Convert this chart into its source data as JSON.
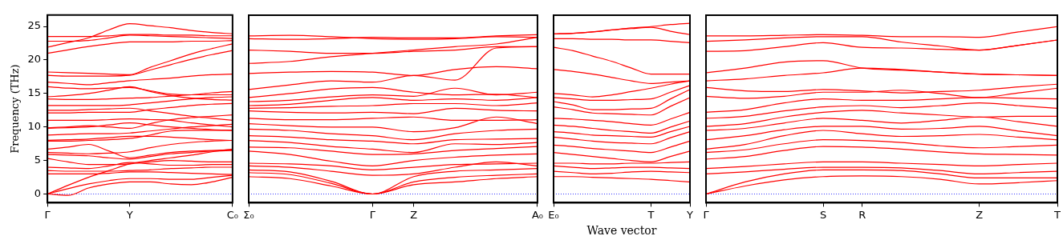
{
  "chart_data": [
    {
      "type": "line",
      "ylabel": "Frequency (THz)",
      "marker": "none",
      "line_style": "solid",
      "categories": [
        "Γ",
        null,
        null,
        null,
        "Y",
        null,
        null,
        null,
        null,
        "C₀"
      ],
      "ylim": [
        -1.3,
        26.7
      ],
      "yticks": [
        0,
        5,
        10,
        15,
        20,
        25
      ],
      "ref_lines": [
        {
          "axis": "y",
          "value": 0,
          "color": "#0000ff",
          "line_style": "dotted"
        }
      ],
      "series": [
        {
          "color": "#ff0000",
          "values": [
            0,
            -0.2,
            0.9,
            1.5,
            1.8,
            1.8,
            1.5,
            1.4,
            1.8,
            2.5
          ]
        },
        {
          "color": "#ff0000",
          "values": [
            0,
            0.8,
            1.5,
            2.0,
            2.3,
            2.3,
            2.2,
            2.2,
            2.5,
            2.8
          ]
        },
        {
          "color": "#ff0000",
          "values": [
            0,
            1.3,
            2.5,
            3.5,
            4.5,
            5.0,
            5.4,
            5.8,
            6.3,
            6.7
          ]
        },
        {
          "color": "#ff0000",
          "values": [
            3.0,
            3.0,
            3.0,
            3.1,
            3.3,
            3.3,
            3.2,
            3.1,
            3.0,
            2.9
          ]
        },
        {
          "color": "#ff0000",
          "values": [
            3.5,
            3.4,
            3.4,
            3.4,
            3.5,
            3.6,
            3.8,
            3.9,
            4.0,
            4.0
          ]
        },
        {
          "color": "#ff0000",
          "values": [
            4.0,
            3.9,
            3.8,
            4.2,
            4.7,
            4.5,
            4.3,
            4.3,
            4.4,
            4.4
          ]
        },
        {
          "color": "#ff0000",
          "values": [
            5.3,
            4.8,
            4.4,
            4.4,
            4.5,
            4.8,
            5.0,
            4.9,
            4.8,
            4.8
          ]
        },
        {
          "color": "#ff0000",
          "values": [
            5.9,
            5.8,
            5.7,
            5.4,
            5.2,
            5.6,
            6.0,
            6.2,
            6.4,
            6.5
          ]
        },
        {
          "color": "#ff0000",
          "values": [
            6.2,
            6.1,
            6.0,
            6.1,
            6.3,
            6.9,
            7.4,
            7.7,
            7.9,
            8.0
          ]
        },
        {
          "color": "#ff0000",
          "values": [
            6.7,
            7.0,
            7.4,
            6.4,
            5.4,
            5.8,
            6.2,
            6.4,
            6.5,
            6.6
          ]
        },
        {
          "color": "#ff0000",
          "values": [
            7.9,
            7.9,
            8.0,
            8.1,
            8.3,
            8.8,
            9.4,
            9.5,
            9.5,
            9.5
          ]
        },
        {
          "color": "#ff0000",
          "values": [
            8.0,
            8.1,
            8.2,
            8.4,
            8.6,
            8.6,
            8.5,
            8.3,
            8.1,
            8.0
          ]
        },
        {
          "color": "#ff0000",
          "values": [
            8.8,
            8.9,
            9.0,
            9.0,
            9.1,
            9.4,
            9.7,
            10.0,
            10.2,
            10.4
          ]
        },
        {
          "color": "#ff0000",
          "values": [
            9.8,
            9.9,
            10.0,
            10.3,
            10.6,
            10.3,
            10.0,
            9.8,
            9.6,
            9.5
          ]
        },
        {
          "color": "#ff0000",
          "values": [
            9.9,
            10.0,
            10.2,
            10.0,
            9.8,
            10.5,
            11.1,
            11.4,
            11.6,
            11.8
          ]
        },
        {
          "color": "#ff0000",
          "values": [
            11.0,
            11.0,
            11.0,
            11.1,
            11.2,
            11.1,
            11.0,
            10.6,
            10.3,
            10.0
          ]
        },
        {
          "color": "#ff0000",
          "values": [
            12.1,
            12.1,
            12.2,
            12.2,
            12.2,
            12.6,
            12.9,
            13.2,
            13.4,
            13.5
          ]
        },
        {
          "color": "#ff0000",
          "values": [
            12.5,
            12.5,
            12.6,
            12.7,
            12.8,
            12.4,
            12.0,
            11.6,
            11.3,
            11.0
          ]
        },
        {
          "color": "#ff0000",
          "values": [
            13.2,
            13.2,
            13.2,
            13.2,
            13.3,
            13.6,
            13.9,
            14.2,
            14.4,
            14.5
          ]
        },
        {
          "color": "#ff0000",
          "values": [
            14.2,
            14.1,
            14.1,
            14.2,
            14.3,
            14.4,
            14.6,
            14.8,
            15.1,
            15.3
          ]
        },
        {
          "color": "#ff0000",
          "values": [
            14.5,
            14.7,
            15.0,
            15.5,
            16.0,
            15.3,
            14.7,
            14.3,
            14.1,
            14.0
          ]
        },
        {
          "color": "#ff0000",
          "values": [
            16.0,
            15.8,
            15.7,
            15.8,
            15.9,
            15.4,
            14.9,
            14.8,
            14.8,
            14.8
          ]
        },
        {
          "color": "#ff0000",
          "values": [
            16.7,
            16.5,
            16.3,
            16.6,
            16.9,
            17.1,
            17.3,
            17.6,
            17.8,
            17.9
          ]
        },
        {
          "color": "#ff0000",
          "values": [
            17.7,
            17.6,
            17.6,
            17.6,
            17.7,
            18.5,
            19.3,
            20.1,
            20.8,
            21.4
          ]
        },
        {
          "color": "#ff0000",
          "values": [
            18.2,
            18.1,
            18.0,
            17.9,
            17.8,
            18.9,
            19.9,
            20.9,
            21.7,
            22.4
          ]
        },
        {
          "color": "#ff0000",
          "values": [
            21.0,
            21.5,
            22.0,
            22.4,
            22.7,
            22.7,
            22.7,
            22.8,
            22.8,
            22.9
          ]
        },
        {
          "color": "#ff0000",
          "values": [
            22.8,
            22.8,
            22.9,
            23.3,
            23.7,
            23.6,
            23.5,
            23.4,
            23.3,
            23.2
          ]
        },
        {
          "color": "#ff0000",
          "values": [
            23.5,
            23.5,
            23.5,
            23.6,
            23.8,
            23.8,
            23.7,
            23.7,
            23.6,
            23.6
          ]
        },
        {
          "color": "#ff0000",
          "values": [
            21.9,
            22.6,
            23.3,
            24.5,
            25.4,
            25.1,
            24.8,
            24.4,
            24.1,
            23.9
          ]
        }
      ]
    },
    {
      "type": "line",
      "tick_labels": "x",
      "marker": "none",
      "line_style": "solid",
      "categories": [
        "Σ₀",
        null,
        null,
        "Γ",
        "Z",
        null,
        null,
        "A₀"
      ],
      "ylim": [
        -1.3,
        26.7
      ],
      "yticks": [
        0,
        5,
        10,
        15,
        20,
        25
      ],
      "ref_lines": [
        {
          "axis": "y",
          "value": 0,
          "color": "#0000ff",
          "line_style": "dotted"
        }
      ],
      "series": [
        {
          "color": "#ff0000",
          "values": [
            2.6,
            2.3,
            1.2,
            0,
            1.4,
            1.8,
            2.3,
            2.6
          ]
        },
        {
          "color": "#ff0000",
          "values": [
            3.2,
            2.9,
            1.6,
            0,
            1.8,
            2.5,
            2.8,
            3.0
          ]
        },
        {
          "color": "#ff0000",
          "values": [
            3.6,
            3.3,
            1.9,
            0,
            2.6,
            3.4,
            3.6,
            3.8
          ]
        },
        {
          "color": "#ff0000",
          "values": [
            4.2,
            4.0,
            3.4,
            2.8,
            3.0,
            4.0,
            4.8,
            4.2
          ]
        },
        {
          "color": "#ff0000",
          "values": [
            4.6,
            4.5,
            4.2,
            3.6,
            4.0,
            4.4,
            4.5,
            4.6
          ]
        },
        {
          "color": "#ff0000",
          "values": [
            6.4,
            5.9,
            4.9,
            4.2,
            5.0,
            5.5,
            5.8,
            6.0
          ]
        },
        {
          "color": "#ff0000",
          "values": [
            7.0,
            6.9,
            6.4,
            5.9,
            6.0,
            6.5,
            6.8,
            7.1
          ]
        },
        {
          "color": "#ff0000",
          "values": [
            8.0,
            7.7,
            7.1,
            6.7,
            6.2,
            7.5,
            7.4,
            7.7
          ]
        },
        {
          "color": "#ff0000",
          "values": [
            8.7,
            8.5,
            8.1,
            7.9,
            7.5,
            8.1,
            8.2,
            8.3
          ]
        },
        {
          "color": "#ff0000",
          "values": [
            9.7,
            9.5,
            9.0,
            8.7,
            8.1,
            9.0,
            9.5,
            9.7
          ]
        },
        {
          "color": "#ff0000",
          "values": [
            10.5,
            10.2,
            10.0,
            10.0,
            9.3,
            9.9,
            11.5,
            10.5
          ]
        },
        {
          "color": "#ff0000",
          "values": [
            11.3,
            11.1,
            11.1,
            11.3,
            11.5,
            11.0,
            11.0,
            11.1
          ]
        },
        {
          "color": "#ff0000",
          "values": [
            12.4,
            12.2,
            12.1,
            12.2,
            12.0,
            12.8,
            12.5,
            12.4
          ]
        },
        {
          "color": "#ff0000",
          "values": [
            12.8,
            12.9,
            13.1,
            13.2,
            13.5,
            13.5,
            13.2,
            13.6
          ]
        },
        {
          "color": "#ff0000",
          "values": [
            13.2,
            13.4,
            14.0,
            14.4,
            14.0,
            14.2,
            14.0,
            14.4
          ]
        },
        {
          "color": "#ff0000",
          "values": [
            13.8,
            14.0,
            14.5,
            14.8,
            14.6,
            15.8,
            14.8,
            15.2
          ]
        },
        {
          "color": "#ff0000",
          "values": [
            14.4,
            15.0,
            15.7,
            15.9,
            15.2,
            14.8,
            14.9,
            14.4
          ]
        },
        {
          "color": "#ff0000",
          "values": [
            15.6,
            16.3,
            16.9,
            16.7,
            17.7,
            17.0,
            21.8,
            22.0
          ]
        },
        {
          "color": "#ff0000",
          "values": [
            18.0,
            18.2,
            18.3,
            18.2,
            17.7,
            18.6,
            19.0,
            18.7
          ]
        },
        {
          "color": "#ff0000",
          "values": [
            19.5,
            19.8,
            20.5,
            21.0,
            21.5,
            22.0,
            22.4,
            23.4
          ]
        },
        {
          "color": "#ff0000",
          "values": [
            21.5,
            21.3,
            21.0,
            21.0,
            21.3,
            21.5,
            22.0,
            22.0
          ]
        },
        {
          "color": "#ff0000",
          "values": [
            23.2,
            23.1,
            23.2,
            23.4,
            23.3,
            23.3,
            23.6,
            23.8
          ]
        },
        {
          "color": "#ff0000",
          "values": [
            23.6,
            23.7,
            23.5,
            23.2,
            23.1,
            23.2,
            23.5,
            23.4
          ]
        }
      ]
    },
    {
      "type": "line",
      "tick_labels": "x",
      "xlabel": "Wave vector",
      "marker": "none",
      "line_style": "solid",
      "categories": [
        "E₀",
        null,
        null,
        null,
        null,
        "T",
        null,
        "Y"
      ],
      "ylim": [
        -1.3,
        26.7
      ],
      "yticks": [
        0,
        5,
        10,
        15,
        20,
        25
      ],
      "ref_lines": [
        {
          "axis": "y",
          "value": 0,
          "color": "#0000ff",
          "line_style": "dotted"
        }
      ],
      "series": [
        {
          "color": "#ff0000",
          "values": [
            2.6,
            2.6,
            2.5,
            2.4,
            2.3,
            2.2,
            2.0,
            1.8
          ]
        },
        {
          "color": "#ff0000",
          "values": [
            3.4,
            3.2,
            3.0,
            3.1,
            3.3,
            3.4,
            3.3,
            3.2
          ]
        },
        {
          "color": "#ff0000",
          "values": [
            4.2,
            4.0,
            3.8,
            3.9,
            4.0,
            4.0,
            3.9,
            3.8
          ]
        },
        {
          "color": "#ff0000",
          "values": [
            4.6,
            4.6,
            4.5,
            4.5,
            4.6,
            4.6,
            4.7,
            4.8
          ]
        },
        {
          "color": "#ff0000",
          "values": [
            6.2,
            5.9,
            5.6,
            5.3,
            5.0,
            4.8,
            5.6,
            6.4
          ]
        },
        {
          "color": "#ff0000",
          "values": [
            7.3,
            7.1,
            6.8,
            6.6,
            6.4,
            6.2,
            7.0,
            7.9
          ]
        },
        {
          "color": "#ff0000",
          "values": [
            8.5,
            8.2,
            7.9,
            7.7,
            7.6,
            7.5,
            8.4,
            9.3
          ]
        },
        {
          "color": "#ff0000",
          "values": [
            9.3,
            9.1,
            8.8,
            8.7,
            8.6,
            8.5,
            9.3,
            10.1
          ]
        },
        {
          "color": "#ff0000",
          "values": [
            10.3,
            10.1,
            9.8,
            9.5,
            9.3,
            9.1,
            10.0,
            10.9
          ]
        },
        {
          "color": "#ff0000",
          "values": [
            11.3,
            11.2,
            11.0,
            10.8,
            10.5,
            10.3,
            11.2,
            12.2
          ]
        },
        {
          "color": "#ff0000",
          "values": [
            13.0,
            12.6,
            12.1,
            12.0,
            11.9,
            11.8,
            13.1,
            14.4
          ]
        },
        {
          "color": "#ff0000",
          "values": [
            13.8,
            13.3,
            12.6,
            12.6,
            12.7,
            12.8,
            14.2,
            15.6
          ]
        },
        {
          "color": "#ff0000",
          "values": [
            14.4,
            14.2,
            14.0,
            14.0,
            14.1,
            14.2,
            15.2,
            16.2
          ]
        },
        {
          "color": "#ff0000",
          "values": [
            15.0,
            14.8,
            14.5,
            14.8,
            15.3,
            15.8,
            16.4,
            16.9
          ]
        },
        {
          "color": "#ff0000",
          "values": [
            18.6,
            18.3,
            17.9,
            17.4,
            16.9,
            16.5,
            16.7,
            16.9
          ]
        },
        {
          "color": "#ff0000",
          "values": [
            21.9,
            21.4,
            20.6,
            19.8,
            18.8,
            17.9,
            17.9,
            17.9
          ]
        },
        {
          "color": "#ff0000",
          "values": [
            23.2,
            23.2,
            23.1,
            23.1,
            23.0,
            23.0,
            22.8,
            22.6
          ]
        },
        {
          "color": "#ff0000",
          "values": [
            23.9,
            24.0,
            24.2,
            24.5,
            24.8,
            25.0,
            25.3,
            25.5
          ]
        },
        {
          "color": "#ff0000",
          "values": [
            23.9,
            24.0,
            24.2,
            24.5,
            24.7,
            24.9,
            24.3,
            23.8
          ]
        }
      ]
    },
    {
      "type": "line",
      "tick_labels": "x",
      "marker": "none",
      "line_style": "solid",
      "categories": [
        "Γ",
        null,
        null,
        "S",
        "R",
        null,
        null,
        "Z",
        null,
        "T"
      ],
      "ylim": [
        -1.3,
        26.7
      ],
      "yticks": [
        0,
        5,
        10,
        15,
        20,
        25
      ],
      "ref_lines": [
        {
          "axis": "y",
          "value": 0,
          "color": "#0000ff",
          "line_style": "dotted"
        }
      ],
      "series": [
        {
          "color": "#ff0000",
          "values": [
            0,
            1.2,
            2.1,
            2.6,
            2.7,
            2.6,
            2.2,
            1.5,
            1.7,
            2.0
          ]
        },
        {
          "color": "#ff0000",
          "values": [
            0,
            1.8,
            3.0,
            3.6,
            3.6,
            3.5,
            3.0,
            2.4,
            2.4,
            2.4
          ]
        },
        {
          "color": "#ff0000",
          "values": [
            3.0,
            3.3,
            3.7,
            4.0,
            4.0,
            3.9,
            3.5,
            3.0,
            3.2,
            3.4
          ]
        },
        {
          "color": "#ff0000",
          "values": [
            3.8,
            4.1,
            4.5,
            4.8,
            4.8,
            4.6,
            4.4,
            4.2,
            4.4,
            4.6
          ]
        },
        {
          "color": "#ff0000",
          "values": [
            5.2,
            5.6,
            6.5,
            7.1,
            7.0,
            6.7,
            6.3,
            6.0,
            5.9,
            5.8
          ]
        },
        {
          "color": "#ff0000",
          "values": [
            6.2,
            6.6,
            7.5,
            8.1,
            8.0,
            7.7,
            7.2,
            6.9,
            7.1,
            7.3
          ]
        },
        {
          "color": "#ff0000",
          "values": [
            6.7,
            7.4,
            8.7,
            9.5,
            9.0,
            8.6,
            8.7,
            8.9,
            8.5,
            8.1
          ]
        },
        {
          "color": "#ff0000",
          "values": [
            8.1,
            8.7,
            9.6,
            10.1,
            10.1,
            9.7,
            9.8,
            10.1,
            9.4,
            8.7
          ]
        },
        {
          "color": "#ff0000",
          "values": [
            9.5,
            9.8,
            10.6,
            11.3,
            11.0,
            10.6,
            11.0,
            11.5,
            10.8,
            10.1
          ]
        },
        {
          "color": "#ff0000",
          "values": [
            10.1,
            10.5,
            11.5,
            12.2,
            12.5,
            12.1,
            11.8,
            11.5,
            11.6,
            11.6
          ]
        },
        {
          "color": "#ff0000",
          "values": [
            11.3,
            11.6,
            12.4,
            13.0,
            13.2,
            12.9,
            13.2,
            13.6,
            13.2,
            12.8
          ]
        },
        {
          "color": "#ff0000",
          "values": [
            12.2,
            12.6,
            13.6,
            14.2,
            14.0,
            14.0,
            14.2,
            14.4,
            14.3,
            14.2
          ]
        },
        {
          "color": "#ff0000",
          "values": [
            14.6,
            14.3,
            14.6,
            15.2,
            15.2,
            15.5,
            15.0,
            14.4,
            15.1,
            15.8
          ]
        },
        {
          "color": "#ff0000",
          "values": [
            15.9,
            15.4,
            15.3,
            15.6,
            15.4,
            15.1,
            15.3,
            15.5,
            16.0,
            16.4
          ]
        },
        {
          "color": "#ff0000",
          "values": [
            16.9,
            17.2,
            17.7,
            18.1,
            18.8,
            18.6,
            18.2,
            17.9,
            17.8,
            17.7
          ]
        },
        {
          "color": "#ff0000",
          "values": [
            18.1,
            18.8,
            19.7,
            19.9,
            18.8,
            18.5,
            18.2,
            17.9,
            17.8,
            17.7
          ]
        },
        {
          "color": "#ff0000",
          "values": [
            21.3,
            21.4,
            22.0,
            22.6,
            21.9,
            21.8,
            21.6,
            21.5,
            22.2,
            23.0
          ]
        },
        {
          "color": "#ff0000",
          "values": [
            22.8,
            23.0,
            23.3,
            23.5,
            23.5,
            22.7,
            22.1,
            21.5,
            22.2,
            23.0
          ]
        },
        {
          "color": "#ff0000",
          "values": [
            23.6,
            23.6,
            23.7,
            23.8,
            23.7,
            23.5,
            23.5,
            23.4,
            24.2,
            25.0
          ]
        }
      ]
    }
  ]
}
